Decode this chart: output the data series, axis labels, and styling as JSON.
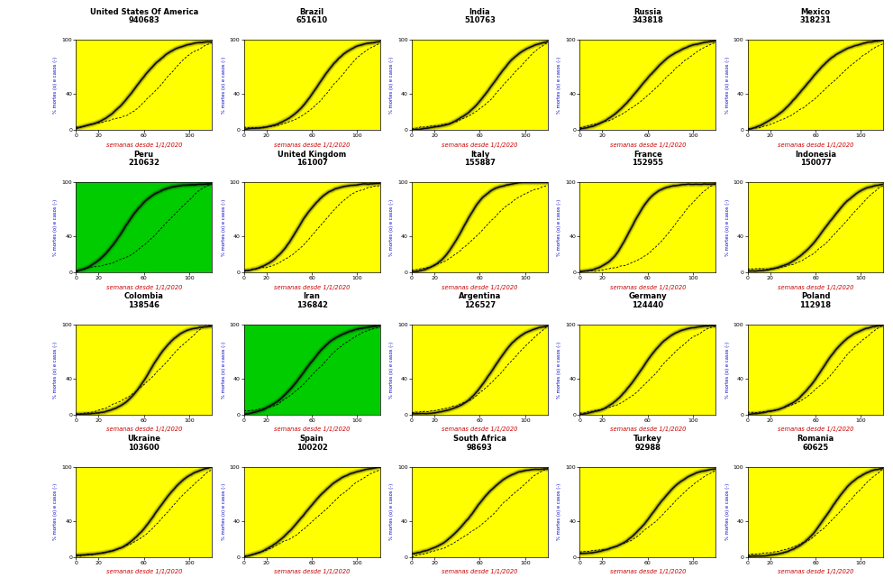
{
  "countries": [
    {
      "name": "United States Of America",
      "value": "940683",
      "bg": "#FFFF00",
      "row": 0,
      "col": 0,
      "solid_x0": 0.45,
      "solid_k": 8,
      "dash_x0": 0.65,
      "dash_k": 6
    },
    {
      "name": "Brazil",
      "value": "651610",
      "bg": "#FFFF00",
      "row": 0,
      "col": 1,
      "solid_x0": 0.55,
      "solid_k": 9,
      "dash_x0": 0.68,
      "dash_k": 7
    },
    {
      "name": "India",
      "value": "510763",
      "bg": "#FFFF00",
      "row": 0,
      "col": 2,
      "solid_x0": 0.6,
      "solid_k": 8,
      "dash_x0": 0.72,
      "dash_k": 6
    },
    {
      "name": "Russia",
      "value": "343818",
      "bg": "#FFFF00",
      "row": 0,
      "col": 3,
      "solid_x0": 0.45,
      "solid_k": 7,
      "dash_x0": 0.6,
      "dash_k": 5
    },
    {
      "name": "Mexico",
      "value": "318231",
      "bg": "#FFFF00",
      "row": 0,
      "col": 4,
      "solid_x0": 0.42,
      "solid_k": 7,
      "dash_x0": 0.65,
      "dash_k": 5
    },
    {
      "name": "Peru",
      "value": "210632",
      "bg": "#00CC00",
      "row": 1,
      "col": 0,
      "solid_x0": 0.35,
      "solid_k": 9,
      "dash_x0": 0.7,
      "dash_k": 5
    },
    {
      "name": "United Kingdom",
      "value": "161007",
      "bg": "#FFFF00",
      "row": 1,
      "col": 1,
      "solid_x0": 0.4,
      "solid_k": 10,
      "dash_x0": 0.55,
      "dash_k": 7
    },
    {
      "name": "Italy",
      "value": "155887",
      "bg": "#FFFF00",
      "row": 1,
      "col": 2,
      "solid_x0": 0.38,
      "solid_k": 11,
      "dash_x0": 0.55,
      "dash_k": 6
    },
    {
      "name": "France",
      "value": "152955",
      "bg": "#FFFF00",
      "row": 1,
      "col": 3,
      "solid_x0": 0.38,
      "solid_k": 12,
      "dash_x0": 0.72,
      "dash_k": 7
    },
    {
      "name": "Indonesia",
      "value": "150077",
      "bg": "#FFFF00",
      "row": 1,
      "col": 4,
      "solid_x0": 0.58,
      "solid_k": 8,
      "dash_x0": 0.73,
      "dash_k": 6
    },
    {
      "name": "Colombia",
      "value": "138546",
      "bg": "#FFFF00",
      "row": 2,
      "col": 0,
      "solid_x0": 0.55,
      "solid_k": 10,
      "dash_x0": 0.68,
      "dash_k": 6
    },
    {
      "name": "Iran",
      "value": "136842",
      "bg": "#00CC00",
      "row": 2,
      "col": 1,
      "solid_x0": 0.45,
      "solid_k": 8,
      "dash_x0": 0.55,
      "dash_k": 6
    },
    {
      "name": "Argentina",
      "value": "126527",
      "bg": "#FFFF00",
      "row": 2,
      "col": 2,
      "solid_x0": 0.6,
      "solid_k": 9,
      "dash_x0": 0.72,
      "dash_k": 6
    },
    {
      "name": "Germany",
      "value": "124440",
      "bg": "#FFFF00",
      "row": 2,
      "col": 3,
      "solid_x0": 0.45,
      "solid_k": 9,
      "dash_x0": 0.6,
      "dash_k": 6
    },
    {
      "name": "Poland",
      "value": "112918",
      "bg": "#FFFF00",
      "row": 2,
      "col": 4,
      "solid_x0": 0.55,
      "solid_k": 9,
      "dash_x0": 0.68,
      "dash_k": 6
    },
    {
      "name": "Ukraine",
      "value": "103600",
      "bg": "#FFFF00",
      "row": 3,
      "col": 0,
      "solid_x0": 0.6,
      "solid_k": 8,
      "dash_x0": 0.72,
      "dash_k": 6
    },
    {
      "name": "Spain",
      "value": "100202",
      "bg": "#FFFF00",
      "row": 3,
      "col": 1,
      "solid_x0": 0.45,
      "solid_k": 7,
      "dash_x0": 0.6,
      "dash_k": 5
    },
    {
      "name": "South Africa",
      "value": "98693",
      "bg": "#FFFF00",
      "row": 3,
      "col": 2,
      "solid_x0": 0.45,
      "solid_k": 8,
      "dash_x0": 0.65,
      "dash_k": 5
    },
    {
      "name": "Turkey",
      "value": "92988",
      "bg": "#FFFF00",
      "row": 3,
      "col": 3,
      "solid_x0": 0.55,
      "solid_k": 8,
      "dash_x0": 0.68,
      "dash_k": 6
    },
    {
      "name": "Romania",
      "value": "60625",
      "bg": "#FFFF00",
      "row": 3,
      "col": 4,
      "solid_x0": 0.6,
      "solid_k": 9,
      "dash_x0": 0.72,
      "dash_k": 6
    }
  ],
  "xlabel": "semanas desde 1/1/2020",
  "ylabel": "% mortes (o) e casos (-)",
  "xlim": [
    0,
    120
  ],
  "ylim": [
    0,
    100
  ],
  "xticks": [
    0,
    20,
    60,
    100
  ],
  "yticks": [
    0,
    40,
    100
  ],
  "nrows": 4,
  "ncols": 5,
  "fig_w": 9.91,
  "fig_h": 6.51,
  "dpi": 100
}
